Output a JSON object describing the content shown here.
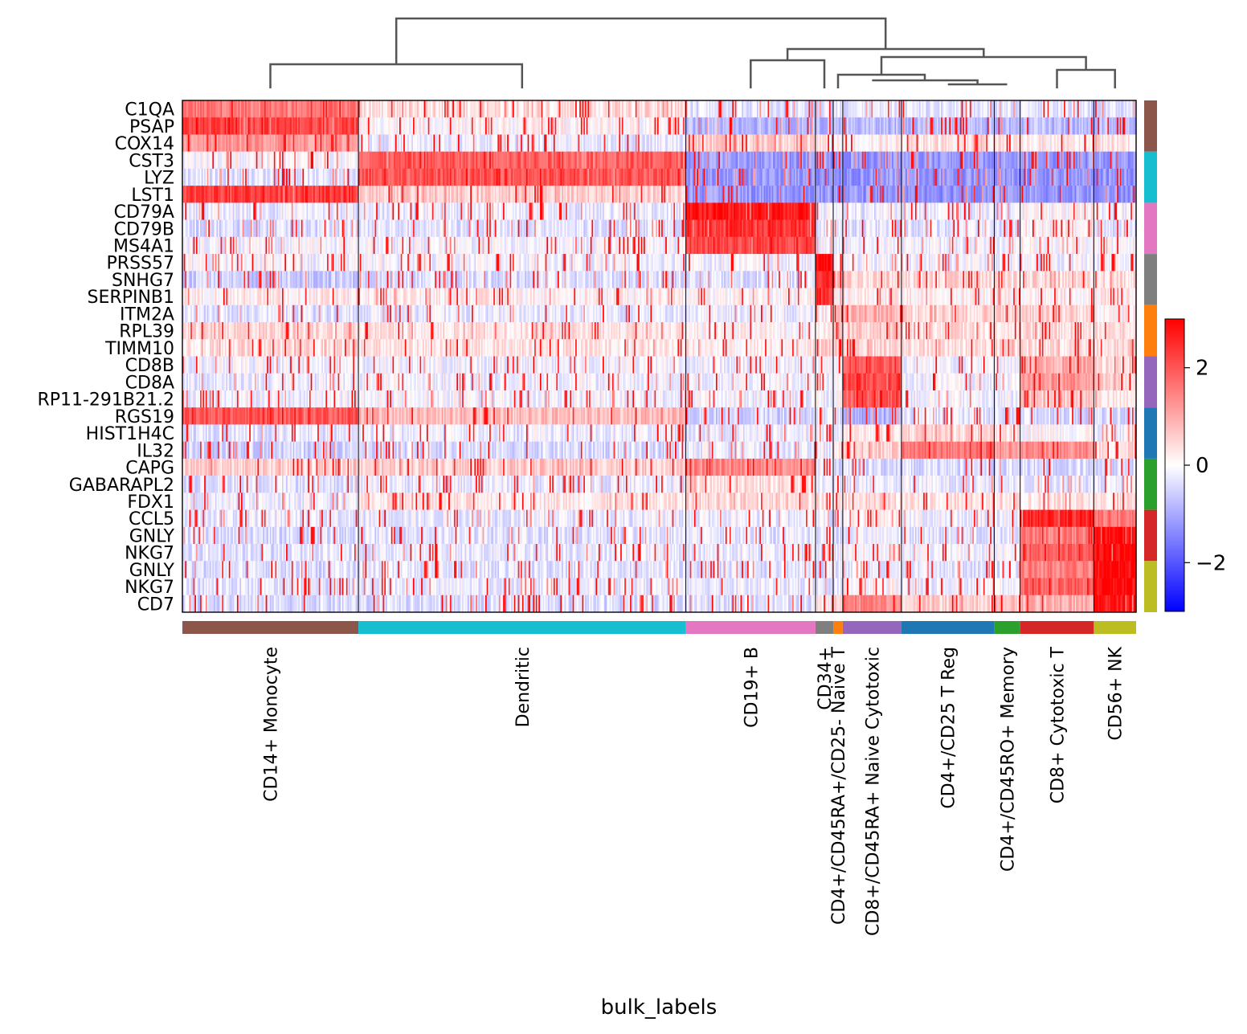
{
  "chart_data": {
    "type": "heatmap",
    "title": "",
    "xlabel": "bulk_labels",
    "ylabel": "",
    "colormap": "bwr",
    "color_range": [
      -3,
      3
    ],
    "colorbar_ticks": [
      2,
      0,
      -2
    ],
    "colorbar_tick_labels": [
      "2",
      "0",
      "−2"
    ],
    "groups": [
      {
        "label": "CD14+ Monocyte",
        "color": "#8c564b",
        "cells": 129,
        "profile": [
          1.6,
          2.2,
          1.2,
          0.0,
          -0.3,
          2.3,
          -0.2,
          -0.4,
          -0.1,
          -0.1,
          -0.6,
          0.2,
          -0.3,
          0.5,
          0.4,
          -0.1,
          -0.2,
          -0.1,
          2.0,
          -0.3,
          -0.5,
          0.5,
          -0.3,
          -0.2,
          -0.2,
          -0.4,
          -0.3,
          -0.4,
          -0.3,
          -0.4
        ]
      },
      {
        "label": "Dendritic",
        "color": "#17becf",
        "cells": 240,
        "profile": [
          0.4,
          0.1,
          -0.2,
          1.9,
          2.0,
          0.6,
          -0.2,
          -0.3,
          -0.1,
          -0.1,
          -0.4,
          0.2,
          -0.2,
          0.3,
          0.3,
          -0.1,
          -0.1,
          -0.1,
          0.8,
          -0.2,
          -0.4,
          0.6,
          -0.2,
          0.3,
          -0.2,
          -0.3,
          -0.2,
          -0.3,
          -0.2,
          -0.4
        ]
      },
      {
        "label": "CD19+ B",
        "color": "#e377c2",
        "cells": 95,
        "profile": [
          -0.3,
          -0.8,
          0.6,
          -1.2,
          -1.2,
          -1.2,
          2.8,
          2.4,
          2.2,
          -0.1,
          -0.4,
          0.1,
          -0.2,
          0.1,
          0.2,
          -0.1,
          -0.1,
          -0.1,
          -0.5,
          -0.2,
          -0.2,
          1.4,
          0.4,
          0.5,
          -0.2,
          -0.3,
          -0.2,
          -0.3,
          -0.2,
          -0.3
        ]
      },
      {
        "label": "CD34+",
        "color": "#7f7f7f",
        "cells": 13,
        "profile": [
          -0.3,
          -0.8,
          0.3,
          -1.2,
          -1.2,
          -1.2,
          -0.2,
          -0.3,
          -0.1,
          2.8,
          2.6,
          2.5,
          0.2,
          0.4,
          0.6,
          -0.1,
          -0.1,
          -0.1,
          -0.3,
          -0.1,
          -0.2,
          -0.1,
          -0.2,
          0.4,
          -0.2,
          -0.3,
          -0.2,
          -0.3,
          -0.2,
          0.2
        ]
      },
      {
        "label": "CD4+/CD45RA+/CD25- Naive T",
        "color": "#ff7f0e",
        "cells": 7,
        "profile": [
          -0.3,
          -0.8,
          0.2,
          -1.2,
          -1.2,
          -1.2,
          -0.2,
          -0.3,
          -0.1,
          -0.1,
          0.6,
          0.2,
          0.8,
          0.6,
          0.6,
          -0.1,
          -0.1,
          -0.1,
          -0.3,
          -0.2,
          0.4,
          -0.4,
          -0.2,
          0.6,
          -0.2,
          -0.3,
          -0.2,
          -0.3,
          -0.2,
          0.6
        ]
      },
      {
        "label": "CD8+/CD45RA+ Naive Cytotoxic",
        "color": "#9467bd",
        "cells": 43,
        "profile": [
          -0.3,
          -0.8,
          0.2,
          -1.2,
          -1.2,
          -1.2,
          -0.2,
          -0.3,
          -0.1,
          -0.1,
          0.5,
          0.2,
          0.9,
          0.6,
          0.5,
          2.0,
          2.2,
          1.9,
          -0.9,
          0.2,
          0.6,
          -0.4,
          -0.2,
          0.4,
          0.2,
          -0.2,
          0.1,
          -0.2,
          0.1,
          1.4
        ]
      },
      {
        "label": "CD4+/CD25 T Reg",
        "color": "#1f77b4",
        "cells": 68,
        "profile": [
          -0.3,
          -0.8,
          0.3,
          -1.2,
          -1.2,
          -1.2,
          -0.2,
          -0.3,
          -0.1,
          -0.1,
          0.4,
          0.2,
          0.5,
          0.4,
          0.4,
          -0.1,
          -0.1,
          -0.1,
          -0.3,
          0.5,
          1.6,
          -0.4,
          -0.2,
          0.4,
          -0.1,
          -0.3,
          -0.1,
          -0.3,
          -0.1,
          0.6
        ]
      },
      {
        "label": "CD4+/CD45RO+ Memory",
        "color": "#2ca02c",
        "cells": 19,
        "profile": [
          -0.3,
          -0.8,
          0.3,
          -1.2,
          -1.2,
          -1.2,
          -0.2,
          -0.3,
          -0.1,
          -0.1,
          0.4,
          0.2,
          0.6,
          0.4,
          0.4,
          -0.1,
          -0.1,
          -0.1,
          -0.3,
          0.3,
          1.2,
          -0.4,
          -0.2,
          0.4,
          -0.1,
          -0.3,
          -0.1,
          -0.3,
          -0.1,
          0.6
        ]
      },
      {
        "label": "CD8+ Cytotoxic T",
        "color": "#d62728",
        "cells": 54,
        "profile": [
          -0.3,
          -0.8,
          0.2,
          -1.2,
          -1.2,
          -1.2,
          0.1,
          0.2,
          0.1,
          -0.1,
          0.4,
          0.2,
          0.5,
          0.4,
          0.4,
          1.0,
          1.2,
          0.6,
          -0.4,
          0.1,
          1.3,
          -0.4,
          -0.2,
          0.3,
          2.6,
          1.5,
          1.9,
          1.5,
          1.9,
          0.9
        ]
      },
      {
        "label": "CD56+ NK",
        "color": "#bcbd22",
        "cells": 31,
        "profile": [
          -0.3,
          -0.8,
          0.3,
          -1.2,
          -1.2,
          -1.2,
          -0.2,
          -0.3,
          -0.1,
          -0.1,
          0.4,
          0.2,
          0.2,
          0.4,
          0.4,
          0.5,
          0.6,
          0.2,
          -0.4,
          -0.1,
          0.4,
          -0.4,
          -0.2,
          0.3,
          1.6,
          2.9,
          2.9,
          2.9,
          2.9,
          2.8
        ]
      }
    ],
    "genes": [
      "C1QA",
      "PSAP",
      "COX14",
      "CST3",
      "LYZ",
      "LST1",
      "CD79A",
      "CD79B",
      "MS4A1",
      "PRSS57",
      "SNHG7",
      "SERPINB1",
      "ITM2A",
      "RPL39",
      "TIMM10",
      "CD8B",
      "CD8A",
      "RP11-291B21.2",
      "RGS19",
      "HIST1H4C",
      "IL32",
      "CAPG",
      "GABARAPL2",
      "FDX1",
      "CCL5",
      "GNLY",
      "NKG7",
      "GNLY",
      "NKG7",
      "CD7"
    ],
    "gene_groups": [
      {
        "color": "#8c564b",
        "genes": 3
      },
      {
        "color": "#17becf",
        "genes": 3
      },
      {
        "color": "#e377c2",
        "genes": 3
      },
      {
        "color": "#7f7f7f",
        "genes": 3
      },
      {
        "color": "#ff7f0e",
        "genes": 3
      },
      {
        "color": "#9467bd",
        "genes": 3
      },
      {
        "color": "#1f77b4",
        "genes": 3
      },
      {
        "color": "#2ca02c",
        "genes": 3
      },
      {
        "color": "#d62728",
        "genes": 3
      },
      {
        "color": "#bcbd22",
        "genes": 3
      }
    ],
    "dendrogram_color": "#555555"
  }
}
